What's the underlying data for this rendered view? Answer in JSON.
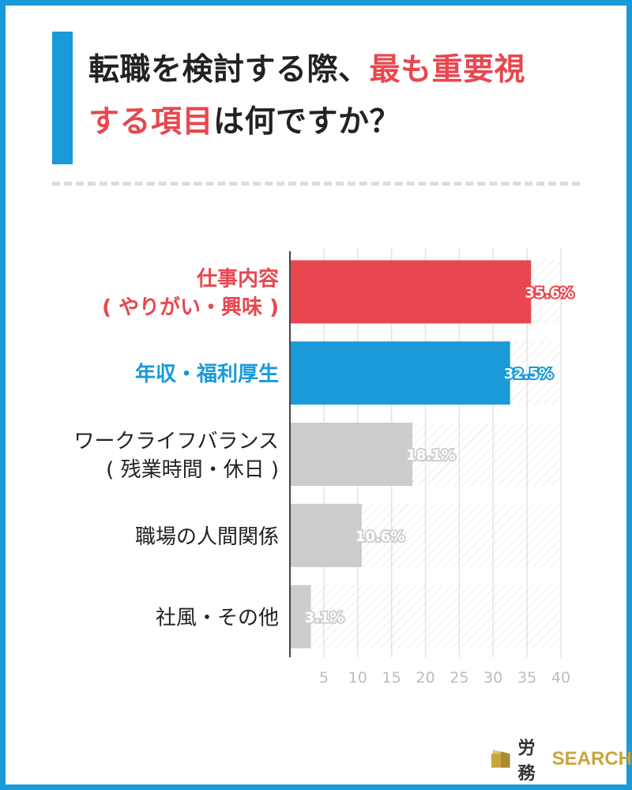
{
  "title": {
    "line1_a": "転職を検討する際、",
    "line1_b": "最も重要視",
    "line2_a": "する項目",
    "line2_b": "は何ですか？"
  },
  "colors": {
    "accent_blue": "#1a9ad9",
    "accent_red": "#e8474f",
    "bar_gray": "#cccccc",
    "grid": "#e3e3e3"
  },
  "chart_data": {
    "type": "bar",
    "orientation": "horizontal",
    "categories": [
      [
        "仕事内容",
        "( やりがい・興味 )"
      ],
      [
        "年収・福利厚生"
      ],
      [
        "ワークライフバランス",
        "( 残業時間・休日 )"
      ],
      [
        "職場の人間関係"
      ],
      [
        "社風・その他"
      ]
    ],
    "values": [
      35.6,
      32.5,
      18.1,
      10.6,
      3.1
    ],
    "value_labels": [
      "35.6%",
      "32.5%",
      "18.1%",
      "10.6%",
      "3.1%"
    ],
    "bar_colors": [
      "#e8474f",
      "#1a9ad9",
      "#cccccc",
      "#cccccc",
      "#cccccc"
    ],
    "label_colors": [
      "#e8474f",
      "#1a9ad9",
      "#222222",
      "#222222",
      "#222222"
    ],
    "xlim": [
      0,
      40
    ],
    "xticks": [
      "5",
      "10",
      "15",
      "20",
      "25",
      "30",
      "35",
      "40"
    ],
    "grid": true
  },
  "logo": {
    "text": "労務",
    "search": "SEARCH",
    "icon": "book-icon"
  }
}
